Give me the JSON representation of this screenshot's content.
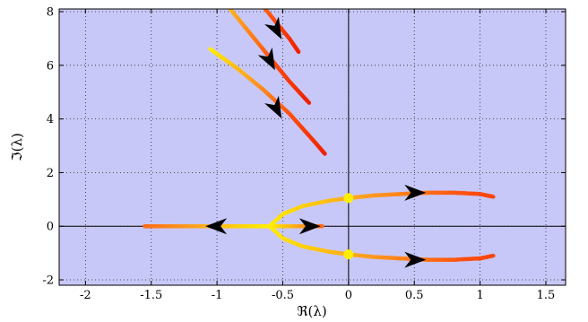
{
  "chart_data": {
    "type": "line",
    "title": "",
    "xlabel": "ℜ(λ)",
    "ylabel": "ℑ(λ)",
    "xlim": [
      -2.2,
      1.65
    ],
    "ylim": [
      -2.2,
      8.1
    ],
    "xticks": [
      -2,
      -1.5,
      -1,
      -0.5,
      0,
      0.5,
      1,
      1.5
    ],
    "xtick_labels": [
      "-2",
      "-1.5",
      "-1",
      "-0.5",
      "0",
      "0.5",
      "1",
      "1.5"
    ],
    "yticks": [
      -2,
      0,
      2,
      4,
      6,
      8
    ],
    "ytick_labels": [
      "-2",
      "0",
      "2",
      "4",
      "6",
      "8"
    ],
    "grid": true,
    "background_color": "#c8c8f8",
    "gradient_colors": [
      "#ffee00",
      "#ffa020",
      "#ff5010",
      "#ee2200"
    ],
    "series": [
      {
        "x": [
          -1.55,
          -1.3,
          -1.05,
          -0.8,
          -0.6
        ],
        "y": [
          0,
          0,
          0,
          0,
          0
        ],
        "color_range": [
          0.55,
          0.0
        ]
      },
      {
        "x": [
          -0.6,
          -0.5,
          -0.4,
          -0.3,
          -0.2
        ],
        "y": [
          0,
          0,
          0,
          0,
          0
        ],
        "color_range": [
          0.0,
          0.55
        ]
      },
      {
        "x": [
          -0.6,
          -0.5,
          -0.35,
          -0.15,
          0.0,
          0.2,
          0.4,
          0.6,
          0.8,
          1.0,
          1.1
        ],
        "y": [
          0,
          0.45,
          0.75,
          0.95,
          1.05,
          1.15,
          1.2,
          1.25,
          1.25,
          1.2,
          1.1
        ],
        "color_range": [
          0.0,
          0.75
        ]
      },
      {
        "x": [
          -0.6,
          -0.5,
          -0.35,
          -0.15,
          0.0,
          0.2,
          0.4,
          0.6,
          0.8,
          1.0,
          1.1
        ],
        "y": [
          0,
          -0.45,
          -0.75,
          -0.95,
          -1.05,
          -1.15,
          -1.2,
          -1.25,
          -1.25,
          -1.2,
          -1.1
        ],
        "color_range": [
          0.0,
          0.75
        ]
      },
      {
        "x": [
          -1.05,
          -0.85,
          -0.65,
          -0.45,
          -0.25,
          -0.18
        ],
        "y": [
          6.6,
          5.9,
          5.1,
          4.2,
          3.1,
          2.7
        ],
        "color_range": [
          0.0,
          1.0
        ]
      },
      {
        "x": [
          -0.9,
          -0.75,
          -0.6,
          -0.45,
          -0.3
        ],
        "y": [
          8.1,
          7.2,
          6.3,
          5.4,
          4.6
        ],
        "color_range": [
          0.25,
          1.0
        ]
      },
      {
        "x": [
          -0.65,
          -0.55,
          -0.45,
          -0.38
        ],
        "y": [
          8.2,
          7.6,
          7.0,
          6.5
        ],
        "color_range": [
          0.55,
          1.0
        ]
      }
    ],
    "arrows": [
      {
        "x": -1.0,
        "y": 0,
        "direction": "left"
      },
      {
        "x": -0.3,
        "y": 0,
        "direction": "right"
      },
      {
        "x": 0.5,
        "y": 1.25,
        "direction": "right"
      },
      {
        "x": 0.5,
        "y": -1.25,
        "direction": "right"
      },
      {
        "x": -0.55,
        "y": 4.4,
        "direction": "down-right"
      },
      {
        "x": -0.6,
        "y": 6.2,
        "direction": "down-right"
      },
      {
        "x": -0.55,
        "y": 7.35,
        "direction": "down-right"
      }
    ],
    "markers": [
      {
        "x": 0,
        "y": 1.05
      },
      {
        "x": 0,
        "y": -1.05
      }
    ]
  }
}
